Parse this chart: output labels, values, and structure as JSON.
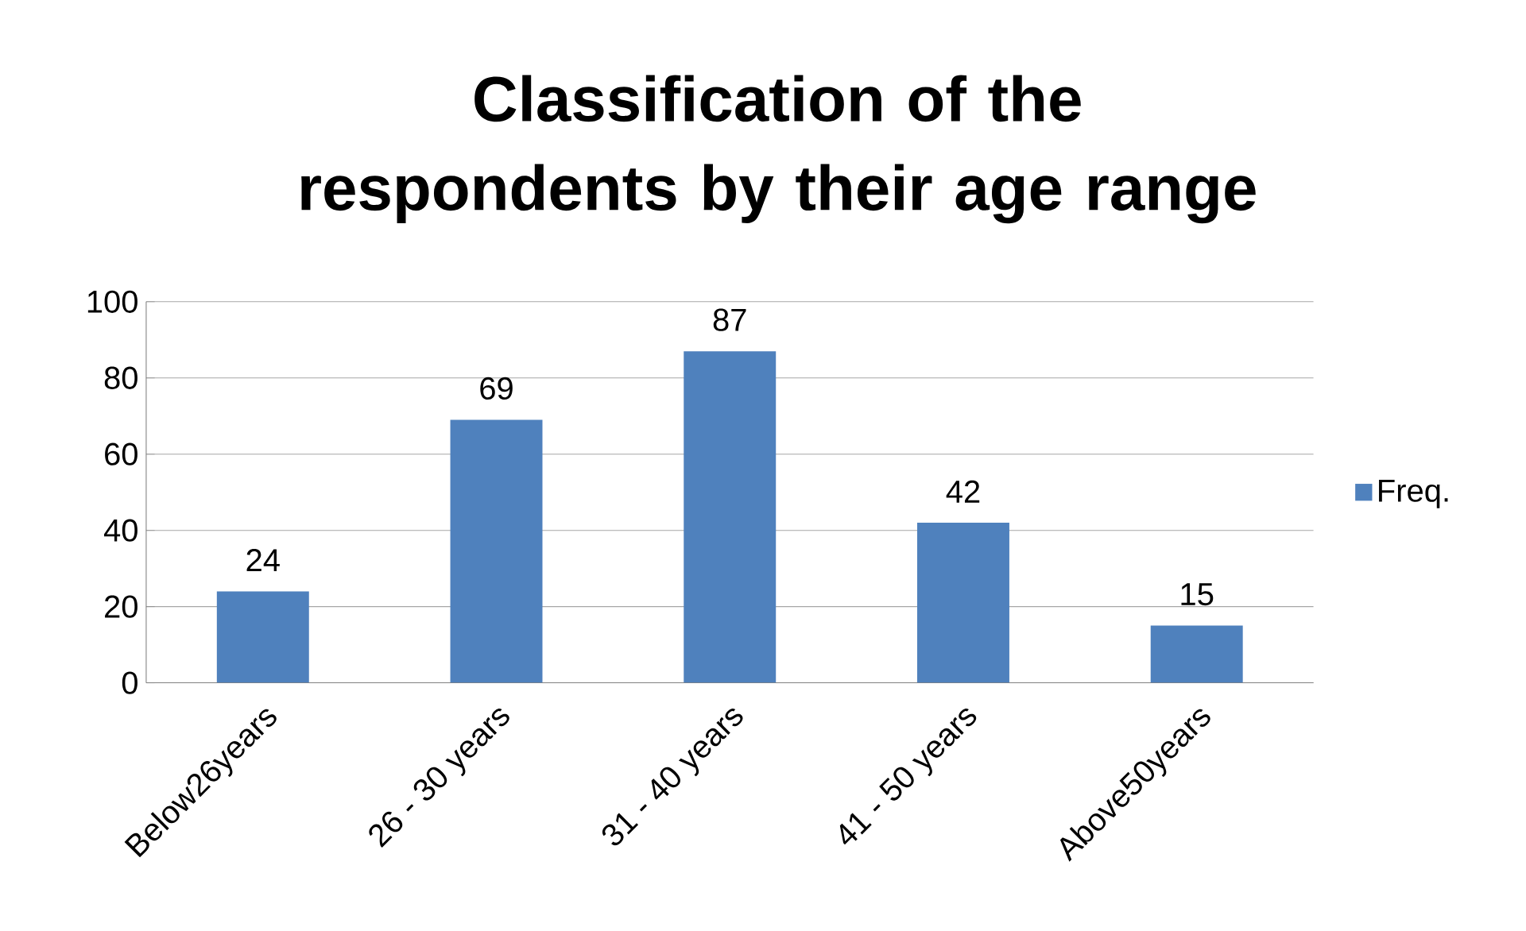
{
  "chart_data": {
    "type": "bar",
    "title": "Classification of the respondents by their age range",
    "categories": [
      "Below26years",
      "26 - 30 years",
      "31 - 40 years",
      "41 - 50 years",
      "Above50years"
    ],
    "series": [
      {
        "name": "Freq.",
        "color": "#4f81bd",
        "values": [
          24,
          69,
          87,
          42,
          15
        ]
      }
    ],
    "ylim": [
      0,
      100
    ],
    "yticks": [
      0,
      20,
      40,
      60,
      80,
      100
    ],
    "grid": "y",
    "legend": "right",
    "data_labels": true
  }
}
